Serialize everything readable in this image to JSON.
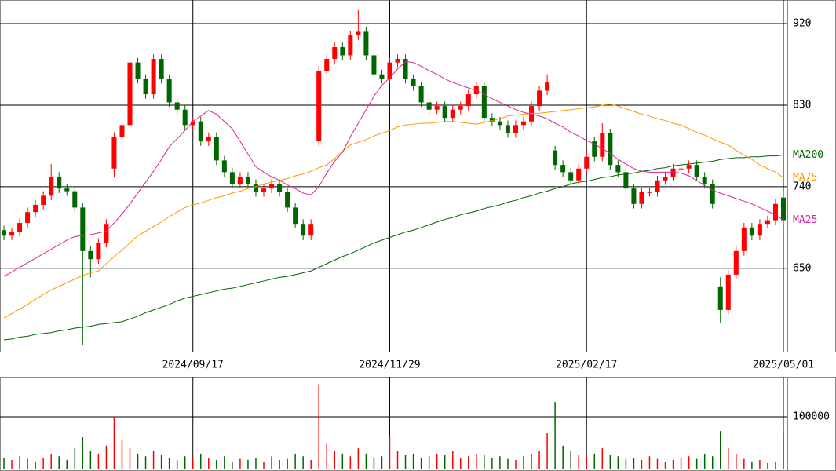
{
  "chart_data": {
    "type": "candlestick",
    "categories": [
      null,
      null,
      null,
      null,
      null,
      null,
      null,
      null,
      null,
      null,
      null,
      null,
      null,
      null,
      null,
      null,
      null,
      null,
      null,
      null,
      null,
      null,
      null,
      null,
      "2024/09/17",
      null,
      null,
      null,
      null,
      null,
      null,
      null,
      null,
      null,
      null,
      null,
      null,
      null,
      null,
      null,
      null,
      null,
      null,
      null,
      null,
      null,
      null,
      null,
      null,
      "2024/11/29",
      null,
      null,
      null,
      null,
      null,
      null,
      null,
      null,
      null,
      null,
      null,
      null,
      null,
      null,
      null,
      null,
      null,
      null,
      null,
      null,
      null,
      null,
      null,
      null,
      "2025/02/17",
      null,
      null,
      null,
      null,
      null,
      null,
      null,
      null,
      null,
      null,
      null,
      null,
      null,
      null,
      null,
      null,
      null,
      null,
      null,
      null,
      null,
      null,
      null,
      null,
      "2025/05/01"
    ],
    "open": [
      692,
      686,
      690,
      700,
      712,
      720,
      730,
      751,
      738,
      735,
      717,
      669,
      660,
      678,
      760,
      795,
      808,
      877,
      859,
      842,
      881,
      859,
      833,
      825,
      808,
      812,
      790,
      795,
      769,
      756,
      743,
      751,
      743,
      734,
      738,
      743,
      734,
      717,
      699,
      686,
      790,
      868,
      881,
      894,
      885,
      907,
      911,
      885,
      864,
      859,
      877,
      881,
      859,
      851,
      833,
      825,
      829,
      816,
      825,
      829,
      842,
      851,
      816,
      812,
      808,
      799,
      808,
      812,
      829,
      846,
      780,
      764,
      756,
      747,
      760,
      790,
      773,
      799,
      764,
      756,
      738,
      721,
      734,
      734,
      747,
      751,
      760,
      760,
      764,
      751,
      743,
      630,
      604,
      643,
      669,
      695,
      686,
      699,
      703,
      728
    ],
    "high": [
      697,
      695,
      705,
      717,
      725,
      735,
      765,
      756,
      743,
      740,
      722,
      674,
      683,
      704,
      800,
      813,
      882,
      882,
      864,
      886,
      886,
      864,
      838,
      830,
      817,
      817,
      800,
      800,
      774,
      761,
      756,
      756,
      748,
      743,
      748,
      748,
      739,
      722,
      704,
      704,
      873,
      886,
      899,
      899,
      912,
      935,
      916,
      890,
      869,
      882,
      886,
      886,
      864,
      856,
      838,
      834,
      834,
      830,
      834,
      847,
      856,
      856,
      821,
      817,
      813,
      813,
      817,
      834,
      851,
      864,
      785,
      769,
      761,
      765,
      778,
      795,
      810,
      804,
      769,
      761,
      743,
      739,
      739,
      752,
      756,
      765,
      765,
      769,
      769,
      756,
      748,
      640,
      648,
      674,
      700,
      700,
      704,
      708,
      726,
      735
    ],
    "low": [
      681,
      681,
      685,
      695,
      707,
      715,
      725,
      733,
      730,
      712,
      565,
      640,
      655,
      673,
      750,
      790,
      803,
      854,
      837,
      837,
      854,
      828,
      820,
      803,
      803,
      785,
      785,
      764,
      751,
      738,
      738,
      738,
      729,
      729,
      733,
      729,
      712,
      694,
      681,
      681,
      785,
      863,
      876,
      880,
      880,
      902,
      880,
      859,
      854,
      854,
      872,
      854,
      846,
      828,
      820,
      820,
      811,
      811,
      820,
      824,
      837,
      811,
      807,
      803,
      794,
      794,
      803,
      807,
      824,
      841,
      759,
      751,
      742,
      742,
      755,
      768,
      768,
      759,
      751,
      733,
      716,
      716,
      729,
      729,
      742,
      746,
      755,
      755,
      746,
      738,
      716,
      590,
      599,
      638,
      664,
      681,
      681,
      694,
      698,
      698
    ],
    "close": [
      686,
      690,
      700,
      712,
      720,
      730,
      751,
      738,
      735,
      717,
      669,
      660,
      678,
      699,
      795,
      808,
      877,
      859,
      842,
      881,
      859,
      833,
      825,
      808,
      812,
      790,
      795,
      769,
      756,
      743,
      751,
      743,
      734,
      738,
      743,
      734,
      717,
      699,
      686,
      699,
      868,
      881,
      894,
      885,
      907,
      911,
      885,
      864,
      859,
      877,
      881,
      859,
      851,
      833,
      825,
      829,
      816,
      825,
      829,
      842,
      851,
      816,
      812,
      808,
      799,
      808,
      812,
      829,
      846,
      855,
      764,
      756,
      747,
      760,
      773,
      773,
      799,
      764,
      756,
      738,
      721,
      734,
      734,
      747,
      751,
      760,
      760,
      764,
      751,
      743,
      721,
      604,
      643,
      669,
      695,
      686,
      699,
      703,
      721,
      703
    ],
    "up_color": "#ff0000",
    "down_color": "#006600",
    "ylim": [
      558,
      946
    ],
    "yticks": [
      650,
      740,
      830,
      920
    ],
    "grid": true,
    "moving_averages": [
      {
        "name": "MA200",
        "color": "#006600",
        "values": [
          571,
          572,
          574,
          575,
          577,
          578,
          579,
          581,
          582,
          584,
          585,
          586,
          588,
          589,
          590,
          591,
          594,
          597,
          601,
          604,
          607,
          610,
          614,
          617,
          619,
          621,
          623,
          625,
          627,
          628,
          630,
          632,
          634,
          636,
          638,
          640,
          641,
          643,
          645,
          647,
          651,
          655,
          659,
          663,
          666,
          670,
          674,
          678,
          681,
          684,
          687,
          690,
          692,
          695,
          698,
          701,
          704,
          706,
          709,
          711,
          713,
          716,
          718,
          720,
          723,
          725,
          728,
          730,
          733,
          735,
          738,
          740,
          743,
          745,
          746,
          748,
          750,
          751,
          753,
          754,
          755,
          757,
          758,
          760,
          761,
          763,
          764,
          765,
          766,
          767,
          768,
          770,
          771,
          772,
          772,
          773,
          773,
          774,
          774,
          775
        ]
      },
      {
        "name": "MA75",
        "color": "#ff9900",
        "values": [
          595,
          600,
          605,
          610,
          616,
          621,
          626,
          630,
          634,
          638,
          642,
          645,
          647,
          655,
          663,
          670,
          678,
          686,
          691,
          696,
          701,
          707,
          712,
          717,
          720,
          722,
          725,
          728,
          730,
          733,
          735,
          738,
          740,
          743,
          745,
          747,
          749,
          752,
          754,
          757,
          761,
          764,
          771,
          779,
          786,
          789,
          792,
          796,
          799,
          802,
          806,
          808,
          809,
          810,
          810,
          811,
          812,
          812,
          811,
          810,
          809,
          811,
          813,
          815,
          818,
          819,
          820,
          821,
          821,
          822,
          823,
          824,
          825,
          826,
          827,
          828,
          830,
          831,
          829,
          826,
          823,
          820,
          818,
          815,
          813,
          810,
          808,
          804,
          800,
          797,
          793,
          789,
          786,
          780,
          775,
          770,
          764,
          760,
          756,
          750
        ]
      },
      {
        "name": "MA25",
        "color": "#dd2299",
        "values": [
          641,
          646,
          651,
          656,
          661,
          666,
          671,
          676,
          681,
          685,
          686,
          687,
          689,
          691,
          700,
          710,
          721,
          733,
          745,
          757,
          770,
          784,
          793,
          802,
          812,
          818,
          824,
          820,
          812,
          804,
          790,
          776,
          762,
          756,
          751,
          747,
          742,
          738,
          733,
          731,
          740,
          755,
          768,
          778,
          795,
          810,
          825,
          840,
          852,
          860,
          870,
          878,
          877,
          873,
          868,
          864,
          859,
          855,
          852,
          849,
          846,
          842,
          837,
          833,
          829,
          825,
          822,
          820,
          818,
          815,
          810,
          806,
          800,
          796,
          791,
          787,
          782,
          777,
          770,
          765,
          760,
          757,
          756,
          756,
          756,
          756,
          755,
          752,
          747,
          741,
          736,
          733,
          730,
          727,
          724,
          721,
          717,
          713,
          709,
          703
        ]
      }
    ],
    "volume": {
      "values": [
        22000,
        18000,
        25000,
        20000,
        15000,
        22000,
        30000,
        25000,
        18000,
        40000,
        61000,
        35000,
        30000,
        45000,
        100000,
        55000,
        40000,
        30000,
        25000,
        35000,
        28000,
        22000,
        18000,
        25000,
        20000,
        30000,
        22000,
        18000,
        25000,
        15000,
        20000,
        18000,
        22000,
        15000,
        25000,
        18000,
        20000,
        30000,
        25000,
        18000,
        162000,
        50000,
        35000,
        30000,
        25000,
        40000,
        30000,
        22000,
        25000,
        64000,
        35000,
        28000,
        30000,
        22000,
        25000,
        30000,
        28000,
        35000,
        22000,
        25000,
        30000,
        28000,
        22000,
        25000,
        20000,
        18000,
        25000,
        30000,
        35000,
        70000,
        128000,
        45000,
        35000,
        28000,
        25000,
        30000,
        40000,
        28000,
        25000,
        20000,
        22000,
        18000,
        25000,
        20000,
        15000,
        18000,
        22000,
        25000,
        20000,
        30000,
        25000,
        73000,
        40000,
        30000,
        20000,
        15000,
        18000,
        12000,
        15000,
        70000
      ],
      "ylim": [
        0,
        176000
      ],
      "yticks": [
        100000
      ]
    }
  }
}
